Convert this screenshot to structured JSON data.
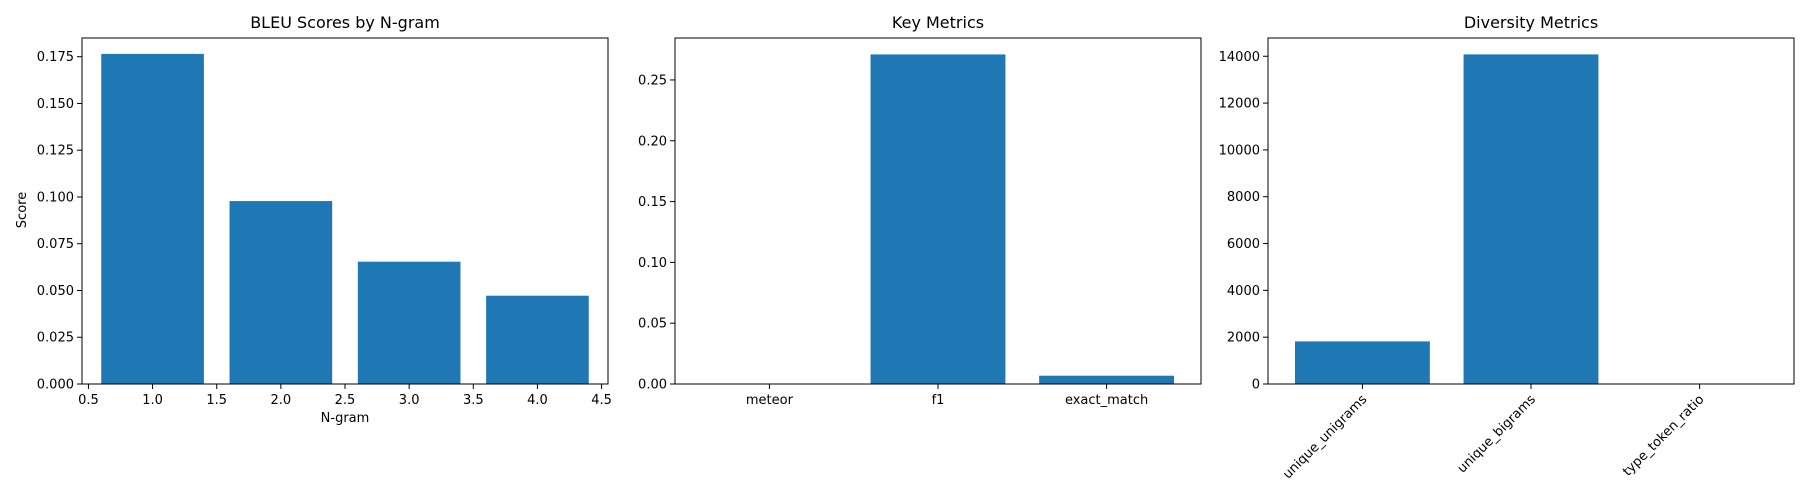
{
  "figure": {
    "background": "#ffffff",
    "bar_color": "#1f77b4"
  },
  "chart_data": [
    {
      "type": "bar",
      "title": "BLEU Scores by N-gram",
      "xlabel": "N-gram",
      "ylabel": "Score",
      "x": [
        1,
        2,
        3,
        4
      ],
      "values": [
        0.1765,
        0.0978,
        0.0654,
        0.0472
      ],
      "bar_width": 0.8,
      "xlim": [
        0.45,
        4.55
      ],
      "ylim": [
        0,
        0.185
      ],
      "xticks": [
        0.5,
        1.0,
        1.5,
        2.0,
        2.5,
        3.0,
        3.5,
        4.0,
        4.5
      ],
      "xtick_labels": [
        "0.5",
        "1.0",
        "1.5",
        "2.0",
        "2.5",
        "3.0",
        "3.5",
        "4.0",
        "4.5"
      ],
      "yticks": [
        0,
        0.025,
        0.05,
        0.075,
        0.1,
        0.125,
        0.15,
        0.175
      ],
      "ytick_labels": [
        "0.000",
        "0.025",
        "0.050",
        "0.075",
        "0.100",
        "0.125",
        "0.150",
        "0.175"
      ],
      "xtick_rotation": 0,
      "grid": false
    },
    {
      "type": "bar",
      "title": "Key Metrics",
      "xlabel": "",
      "ylabel": "",
      "categories": [
        "meteor",
        "f1",
        "exact_match"
      ],
      "values": [
        0.0,
        0.271,
        0.0068
      ],
      "bar_width": 0.8,
      "ylim": [
        0,
        0.2845
      ],
      "yticks": [
        0,
        0.05,
        0.1,
        0.15,
        0.2,
        0.25
      ],
      "ytick_labels": [
        "0.00",
        "0.05",
        "0.10",
        "0.15",
        "0.20",
        "0.25"
      ],
      "xtick_rotation": 0,
      "grid": false
    },
    {
      "type": "bar",
      "title": "Diversity Metrics",
      "xlabel": "",
      "ylabel": "",
      "categories": [
        "unique_unigrams",
        "unique_bigrams",
        "type_token_ratio"
      ],
      "values": [
        1820,
        14080,
        0.13
      ],
      "bar_width": 0.8,
      "ylim": [
        0,
        14780
      ],
      "yticks": [
        0,
        2000,
        4000,
        6000,
        8000,
        10000,
        12000,
        14000
      ],
      "ytick_labels": [
        "0",
        "2000",
        "4000",
        "6000",
        "8000",
        "10000",
        "12000",
        "14000"
      ],
      "xtick_rotation": -45,
      "grid": false
    }
  ]
}
